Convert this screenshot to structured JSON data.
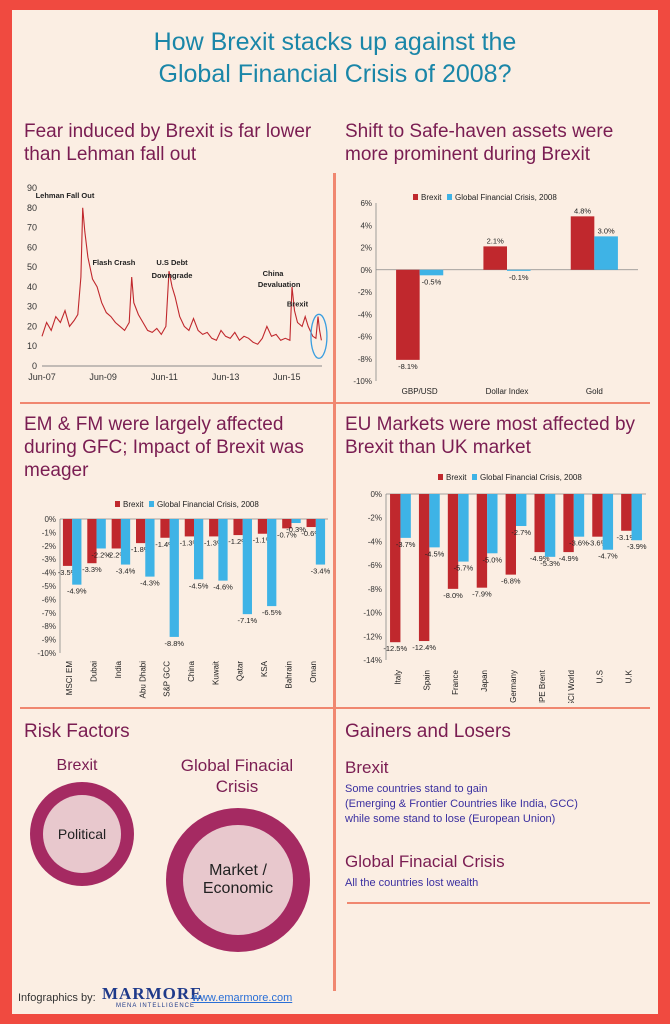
{
  "title": {
    "line1": "How Brexit stacks up against  the",
    "line2": "Global Financial Crisis of 2008?"
  },
  "colors": {
    "brexit": "#c0282d",
    "gfc": "#3eb3e6",
    "line": "#c0282d",
    "accent": "#7a1d52",
    "title": "#1a86a8"
  },
  "panels": {
    "p1": {
      "title1": "Fear induced by Brexit is far lower",
      "title2": "than Lehman fall out"
    },
    "p2": {
      "title1": "Shift to Safe-haven assets were",
      "title2": "more prominent during Brexit"
    },
    "p3": {
      "title1": "EM & FM were largely affected",
      "title2": "during GFC; Impact of Brexit was",
      "title3": "meager"
    },
    "p4": {
      "title1": "EU Markets were most affected by",
      "title2": "Brexit than UK market"
    }
  },
  "risk": {
    "heading": "Risk Factors",
    "brexit_label": "Brexit",
    "brexit_factor": "Political",
    "gfc_label1": "Global Finacial",
    "gfc_label2": "Crisis",
    "gfc_factor1": "Market /",
    "gfc_factor2": "Economic"
  },
  "gainers": {
    "heading": "Gainers and Losers",
    "brexit_title": "Brexit",
    "brexit_l1": "Some countries stand to gain",
    "brexit_l2": "(Emerging & Frontier Countries like India, GCC)",
    "brexit_l3": "while some stand to lose (European Union)",
    "gfc_title": "Global Finacial Crisis",
    "gfc_l1": "All the countries lost wealth"
  },
  "footer": {
    "label": "Infographics by:",
    "logo": "MARMORE",
    "logo_sub": "MENA INTELLIGENCE",
    "url": "www.emarmore.com"
  },
  "chart_data": [
    {
      "type": "line",
      "title": "Fear induced by Brexit is far lower than Lehman fall out",
      "x_ticks": [
        "Jun-07",
        "Jun-09",
        "Jun-11",
        "Jun-13",
        "Jun-15"
      ],
      "ylim": [
        0,
        90
      ],
      "y_ticks": [
        0,
        10,
        20,
        30,
        40,
        50,
        60,
        70,
        80,
        90
      ],
      "annotations": [
        "Lehman Fall Out",
        "Flash Crash",
        "U.S Debt",
        "Downgrade",
        "China",
        "Devaluation",
        "Brexit"
      ],
      "x_range": [
        "2007-06",
        "2016-07"
      ],
      "series": [
        {
          "points": [
            [
              2007.45,
              15
            ],
            [
              2007.6,
              22
            ],
            [
              2007.75,
              18
            ],
            [
              2007.9,
              25
            ],
            [
              2008.05,
              22
            ],
            [
              2008.2,
              28
            ],
            [
              2008.35,
              20
            ],
            [
              2008.5,
              23
            ],
            [
              2008.62,
              26
            ],
            [
              2008.72,
              45
            ],
            [
              2008.78,
              80
            ],
            [
              2008.85,
              68
            ],
            [
              2008.95,
              55
            ],
            [
              2009.1,
              44
            ],
            [
              2009.25,
              40
            ],
            [
              2009.4,
              32
            ],
            [
              2009.55,
              27
            ],
            [
              2009.7,
              25
            ],
            [
              2009.85,
              22
            ],
            [
              2010.0,
              20
            ],
            [
              2010.15,
              18
            ],
            [
              2010.3,
              22
            ],
            [
              2010.38,
              45
            ],
            [
              2010.45,
              32
            ],
            [
              2010.6,
              26
            ],
            [
              2010.75,
              22
            ],
            [
              2010.9,
              18
            ],
            [
              2011.05,
              17
            ],
            [
              2011.2,
              19
            ],
            [
              2011.35,
              16
            ],
            [
              2011.5,
              20
            ],
            [
              2011.6,
              48
            ],
            [
              2011.7,
              40
            ],
            [
              2011.8,
              35
            ],
            [
              2011.95,
              25
            ],
            [
              2012.1,
              20
            ],
            [
              2012.25,
              18
            ],
            [
              2012.4,
              24
            ],
            [
              2012.55,
              18
            ],
            [
              2012.7,
              16
            ],
            [
              2012.85,
              17
            ],
            [
              2013.0,
              14
            ],
            [
              2013.15,
              13
            ],
            [
              2013.3,
              18
            ],
            [
              2013.45,
              15
            ],
            [
              2013.6,
              14
            ],
            [
              2013.75,
              17
            ],
            [
              2013.9,
              13
            ],
            [
              2014.05,
              15
            ],
            [
              2014.2,
              14
            ],
            [
              2014.35,
              12
            ],
            [
              2014.5,
              11
            ],
            [
              2014.65,
              14
            ],
            [
              2014.8,
              20
            ],
            [
              2014.95,
              15
            ],
            [
              2015.1,
              16
            ],
            [
              2015.25,
              13
            ],
            [
              2015.4,
              14
            ],
            [
              2015.55,
              13
            ],
            [
              2015.62,
              40
            ],
            [
              2015.7,
              28
            ],
            [
              2015.8,
              22
            ],
            [
              2015.95,
              20
            ],
            [
              2016.05,
              25
            ],
            [
              2016.15,
              20
            ],
            [
              2016.3,
              15
            ],
            [
              2016.4,
              14
            ],
            [
              2016.47,
              25
            ],
            [
              2016.52,
              18
            ],
            [
              2016.58,
              13
            ]
          ]
        }
      ]
    },
    {
      "type": "bar",
      "title": "Shift to Safe-haven assets were more prominent during Brexit",
      "categories": [
        "GBP/USD",
        "Dollar Index",
        "Gold"
      ],
      "series": [
        {
          "name": "Brexit",
          "values": [
            -8.1,
            2.1,
            4.8
          ]
        },
        {
          "name": "Global Financial Crisis, 2008",
          "values": [
            -0.5,
            -0.1,
            3.0
          ]
        }
      ],
      "labels": [
        [
          "-8.1%",
          "2.1%",
          "4.8%"
        ],
        [
          "-0.5%",
          "-0.1%",
          "3.0%"
        ]
      ],
      "ylim": [
        -10,
        6
      ],
      "y_ticks": [
        "6%",
        "4%",
        "2%",
        "0%",
        "-2%",
        "-4%",
        "-6%",
        "-8%",
        "-10%"
      ],
      "legend": "top"
    },
    {
      "type": "bar",
      "title": "EM & FM were largely affected during GFC; Impact of Brexit was meager",
      "categories": [
        "MSCI EM",
        "Dubai",
        "India",
        "Abu Dhabi",
        "S&P GCC",
        "China",
        "Kuwait",
        "Qatar",
        "KSA",
        "Bahrain",
        "Oman"
      ],
      "series": [
        {
          "name": "Brexit",
          "values": [
            -3.5,
            -3.3,
            -2.2,
            -1.8,
            -1.4,
            -1.3,
            -1.3,
            -1.2,
            -1.1,
            -0.7,
            -0.6
          ]
        },
        {
          "name": "Global Financial Crisis, 2008",
          "values": [
            -4.9,
            -2.2,
            -3.4,
            -4.3,
            -8.8,
            -4.5,
            -4.6,
            -7.1,
            -6.5,
            -0.3,
            -3.4
          ]
        }
      ],
      "labels": [
        [
          "-3.5%",
          "-3.3%",
          "-2.2%",
          "-1.8%",
          "-1.4%",
          "-1.3%",
          "-1.3%",
          "-1.2%",
          "-1.1%",
          "-0.7%",
          "-0.6%"
        ],
        [
          "-4.9%",
          "-2.2%",
          "-3.4%",
          "-4.3%",
          "-8.8%",
          "-4.5%",
          "-4.6%",
          "-7.1%",
          "-6.5%",
          "-0.3%",
          "-3.4%"
        ]
      ],
      "ylim": [
        -10,
        0
      ],
      "y_ticks": [
        "0%",
        "-1%",
        "-2%",
        "-3%",
        "-4%",
        "-5%",
        "-6%",
        "-7%",
        "-8%",
        "-9%",
        "-10%"
      ],
      "legend": "top"
    },
    {
      "type": "bar",
      "title": "EU Markets were most affected by Brexit than UK market",
      "categories": [
        "Italy",
        "Spain",
        "France",
        "Japan",
        "Germany",
        "IPE Brent",
        "MSCI World",
        "U.S",
        "U.K"
      ],
      "series": [
        {
          "name": "Brexit",
          "values": [
            -12.5,
            -12.4,
            -8.0,
            -7.9,
            -6.8,
            -4.9,
            -4.9,
            -3.6,
            -3.1
          ]
        },
        {
          "name": "Global Financial Crisis, 2008",
          "values": [
            -3.7,
            -4.5,
            -5.7,
            -5.0,
            -2.7,
            -5.3,
            -3.6,
            -4.7,
            -3.9
          ]
        }
      ],
      "labels": [
        [
          "-12.5%",
          "-12.4%",
          "-8.0%",
          "-7.9%",
          "-6.8%",
          "-4.9%",
          "-4.9%",
          "-3.6%",
          "-3.1%"
        ],
        [
          "-3.7%",
          "-4.5%",
          "-5.7%",
          "-5.0%",
          "-2.7%",
          "-5.3%",
          "-3.6%",
          "-4.7%",
          "-3.9%"
        ]
      ],
      "ylim": [
        -14,
        0
      ],
      "y_ticks": [
        "0%",
        "-2%",
        "-4%",
        "-6%",
        "-8%",
        "-10%",
        "-12%",
        "-14%"
      ],
      "legend": "top"
    }
  ]
}
